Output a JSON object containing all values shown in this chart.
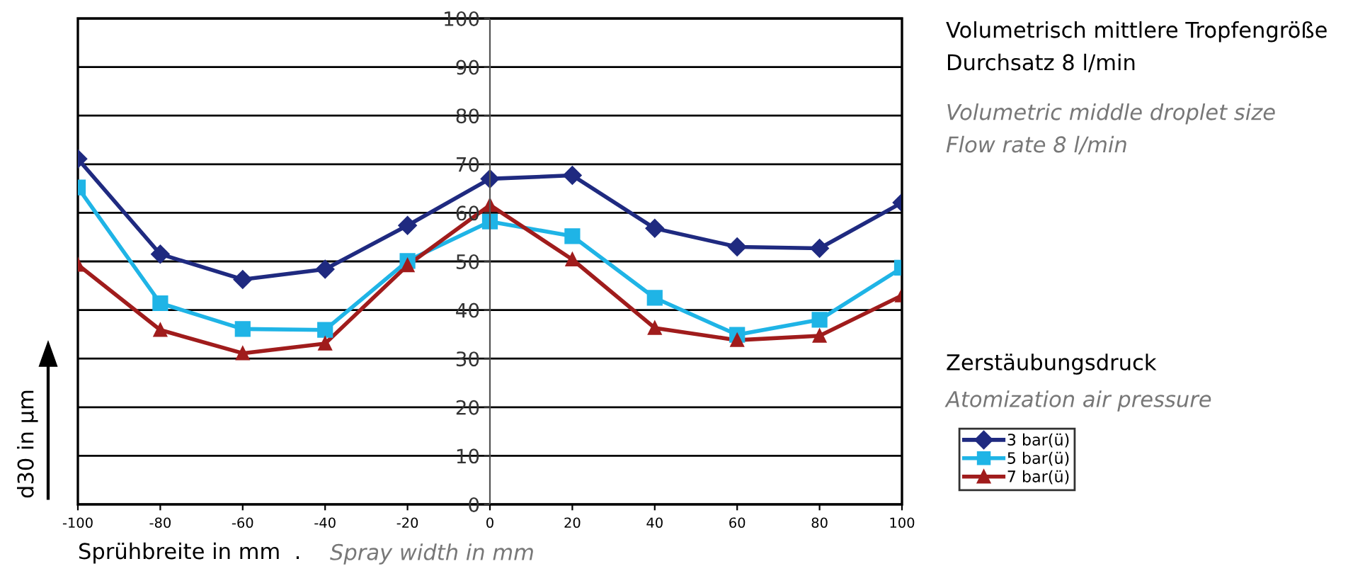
{
  "chart_data": {
    "type": "line",
    "title": "Volumetrisch mittlere Tropfengröße\nDurchsatz 8 l/min",
    "subtitle": "Volumetric middle droplet size\nFlow rate 8 l/min",
    "xlabel": "Sprühbreite in mm  .",
    "ylabel": "d30 in µm",
    "legend_title": "Zerstäubungsdruck",
    "annotations": [
      "Spray width in mm",
      "Atomization air pressure"
    ],
    "x": [
      -100,
      -80,
      -60,
      -40,
      -20,
      0,
      20,
      40,
      60,
      80,
      100
    ],
    "series": [
      {
        "name": "3 bar(ü)",
        "color": "#1f2a80",
        "marker": "diamond",
        "values": [
          71.1,
          51.5,
          46.3,
          48.4,
          57.4,
          67.0,
          67.7,
          56.8,
          53.0,
          52.7,
          62.1
        ]
      },
      {
        "name": "5 bar(ü)",
        "color": "#1fb4e6",
        "marker": "square",
        "values": [
          65.2,
          41.4,
          36.1,
          35.9,
          50.1,
          58.2,
          55.2,
          42.5,
          34.9,
          38.0,
          48.7
        ]
      },
      {
        "name": "7 bar(ü)",
        "color": "#a01c1c",
        "marker": "triangle",
        "values": [
          49.3,
          35.9,
          31.1,
          33.1,
          49.2,
          61.6,
          50.4,
          36.3,
          33.8,
          34.7,
          43.0
        ]
      }
    ],
    "xlim": [
      -100,
      100
    ],
    "xticks": [
      -100,
      -80,
      -60,
      -40,
      -20,
      0,
      20,
      40,
      60,
      80,
      100
    ],
    "ylim": [
      0,
      100
    ],
    "yticks": [
      0,
      10,
      20,
      30,
      40,
      50,
      60,
      70,
      80,
      90,
      100
    ],
    "grid": "y",
    "legend": "right",
    "line_style": "solid"
  }
}
